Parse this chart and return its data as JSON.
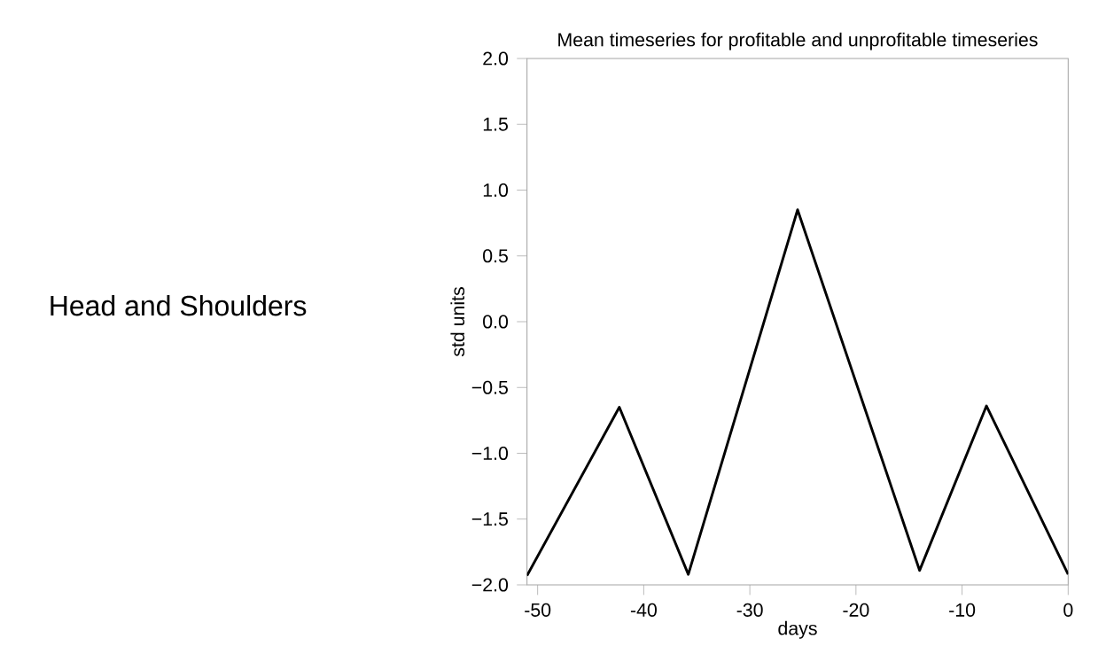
{
  "chart_data": {
    "type": "line",
    "title": "Mean timeseries for profitable and unprofitable timeseries",
    "xlabel": "days",
    "ylabel": "std units",
    "annotations": [
      "Head and Shoulders"
    ],
    "x": [
      -51,
      -42.3,
      -35.8,
      -25.5,
      -14,
      -7.7,
      0
    ],
    "series": [
      {
        "color": "#000000",
        "values": [
          -1.93,
          -0.65,
          -1.92,
          0.85,
          -1.89,
          -0.64,
          -1.92
        ]
      }
    ],
    "xlim": [
      -51,
      0
    ],
    "ylim": [
      -2,
      2
    ],
    "xticks": [
      -50,
      -40,
      -30,
      -20,
      -10,
      0
    ],
    "yticks": [
      {
        "value": -2,
        "label": "−2.0"
      },
      {
        "value": -1.5,
        "label": "−1.5"
      },
      {
        "value": -1,
        "label": "−1.0"
      },
      {
        "value": -0.5,
        "label": "−0.5"
      },
      {
        "value": 0,
        "label": "0.0"
      },
      {
        "value": 0.5,
        "label": "0.5"
      },
      {
        "value": 1,
        "label": "1.0"
      },
      {
        "value": 1.5,
        "label": "1.5"
      },
      {
        "value": 2,
        "label": "2.0"
      }
    ],
    "grid": false,
    "marker": "none",
    "line_style": "solid"
  }
}
